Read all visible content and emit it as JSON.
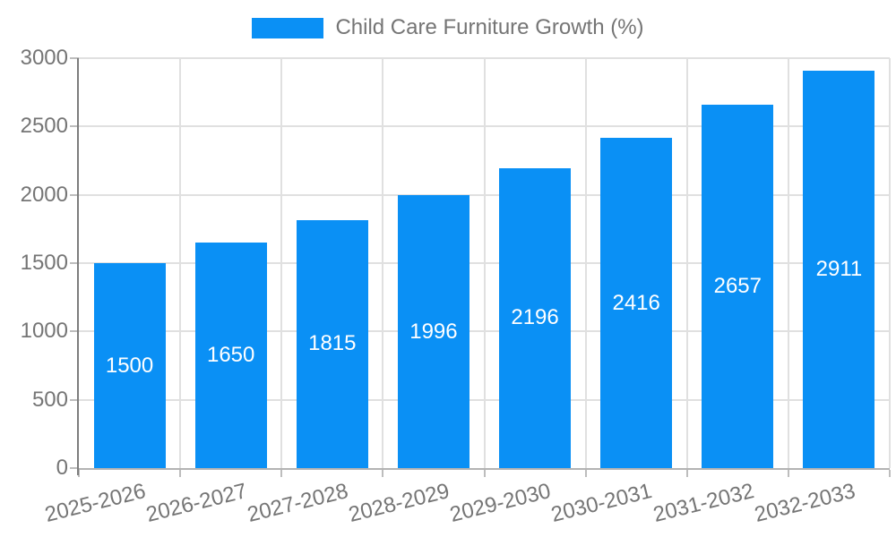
{
  "legend": {
    "label": "Child Care Furniture Growth (%)"
  },
  "chart_data": {
    "type": "bar",
    "title": "Child Care Furniture Growth (%)",
    "series_name": "Child Care Furniture Growth (%)",
    "categories": [
      "2025-2026",
      "2026-2027",
      "2027-2028",
      "2028-2029",
      "2029-2030",
      "2030-2031",
      "2031-2032",
      "2032-2033"
    ],
    "values": [
      1500,
      1650,
      1815,
      1996,
      2196,
      2416,
      2657,
      2911
    ],
    "value_labels": [
      "1500",
      "1650",
      "1815",
      "1996",
      "2196",
      "2416",
      "2657",
      "2911"
    ],
    "xlabel": "",
    "ylabel": "",
    "ylim": [
      0,
      3000
    ],
    "ytick_step": 500,
    "yticks": [
      "0",
      "500",
      "1000",
      "1500",
      "2000",
      "2500",
      "3000"
    ],
    "grid": true,
    "legend_position": "top",
    "bar_color": "#0a90f5",
    "value_label_color": "#ffffff",
    "axis_text_color": "#757575",
    "grid_color": "#e0e0e0",
    "y_axis_line_color": "#7d7d7d",
    "x_axis_line_color": "#b3b3b3",
    "tick_color": "#bdbdbd"
  }
}
